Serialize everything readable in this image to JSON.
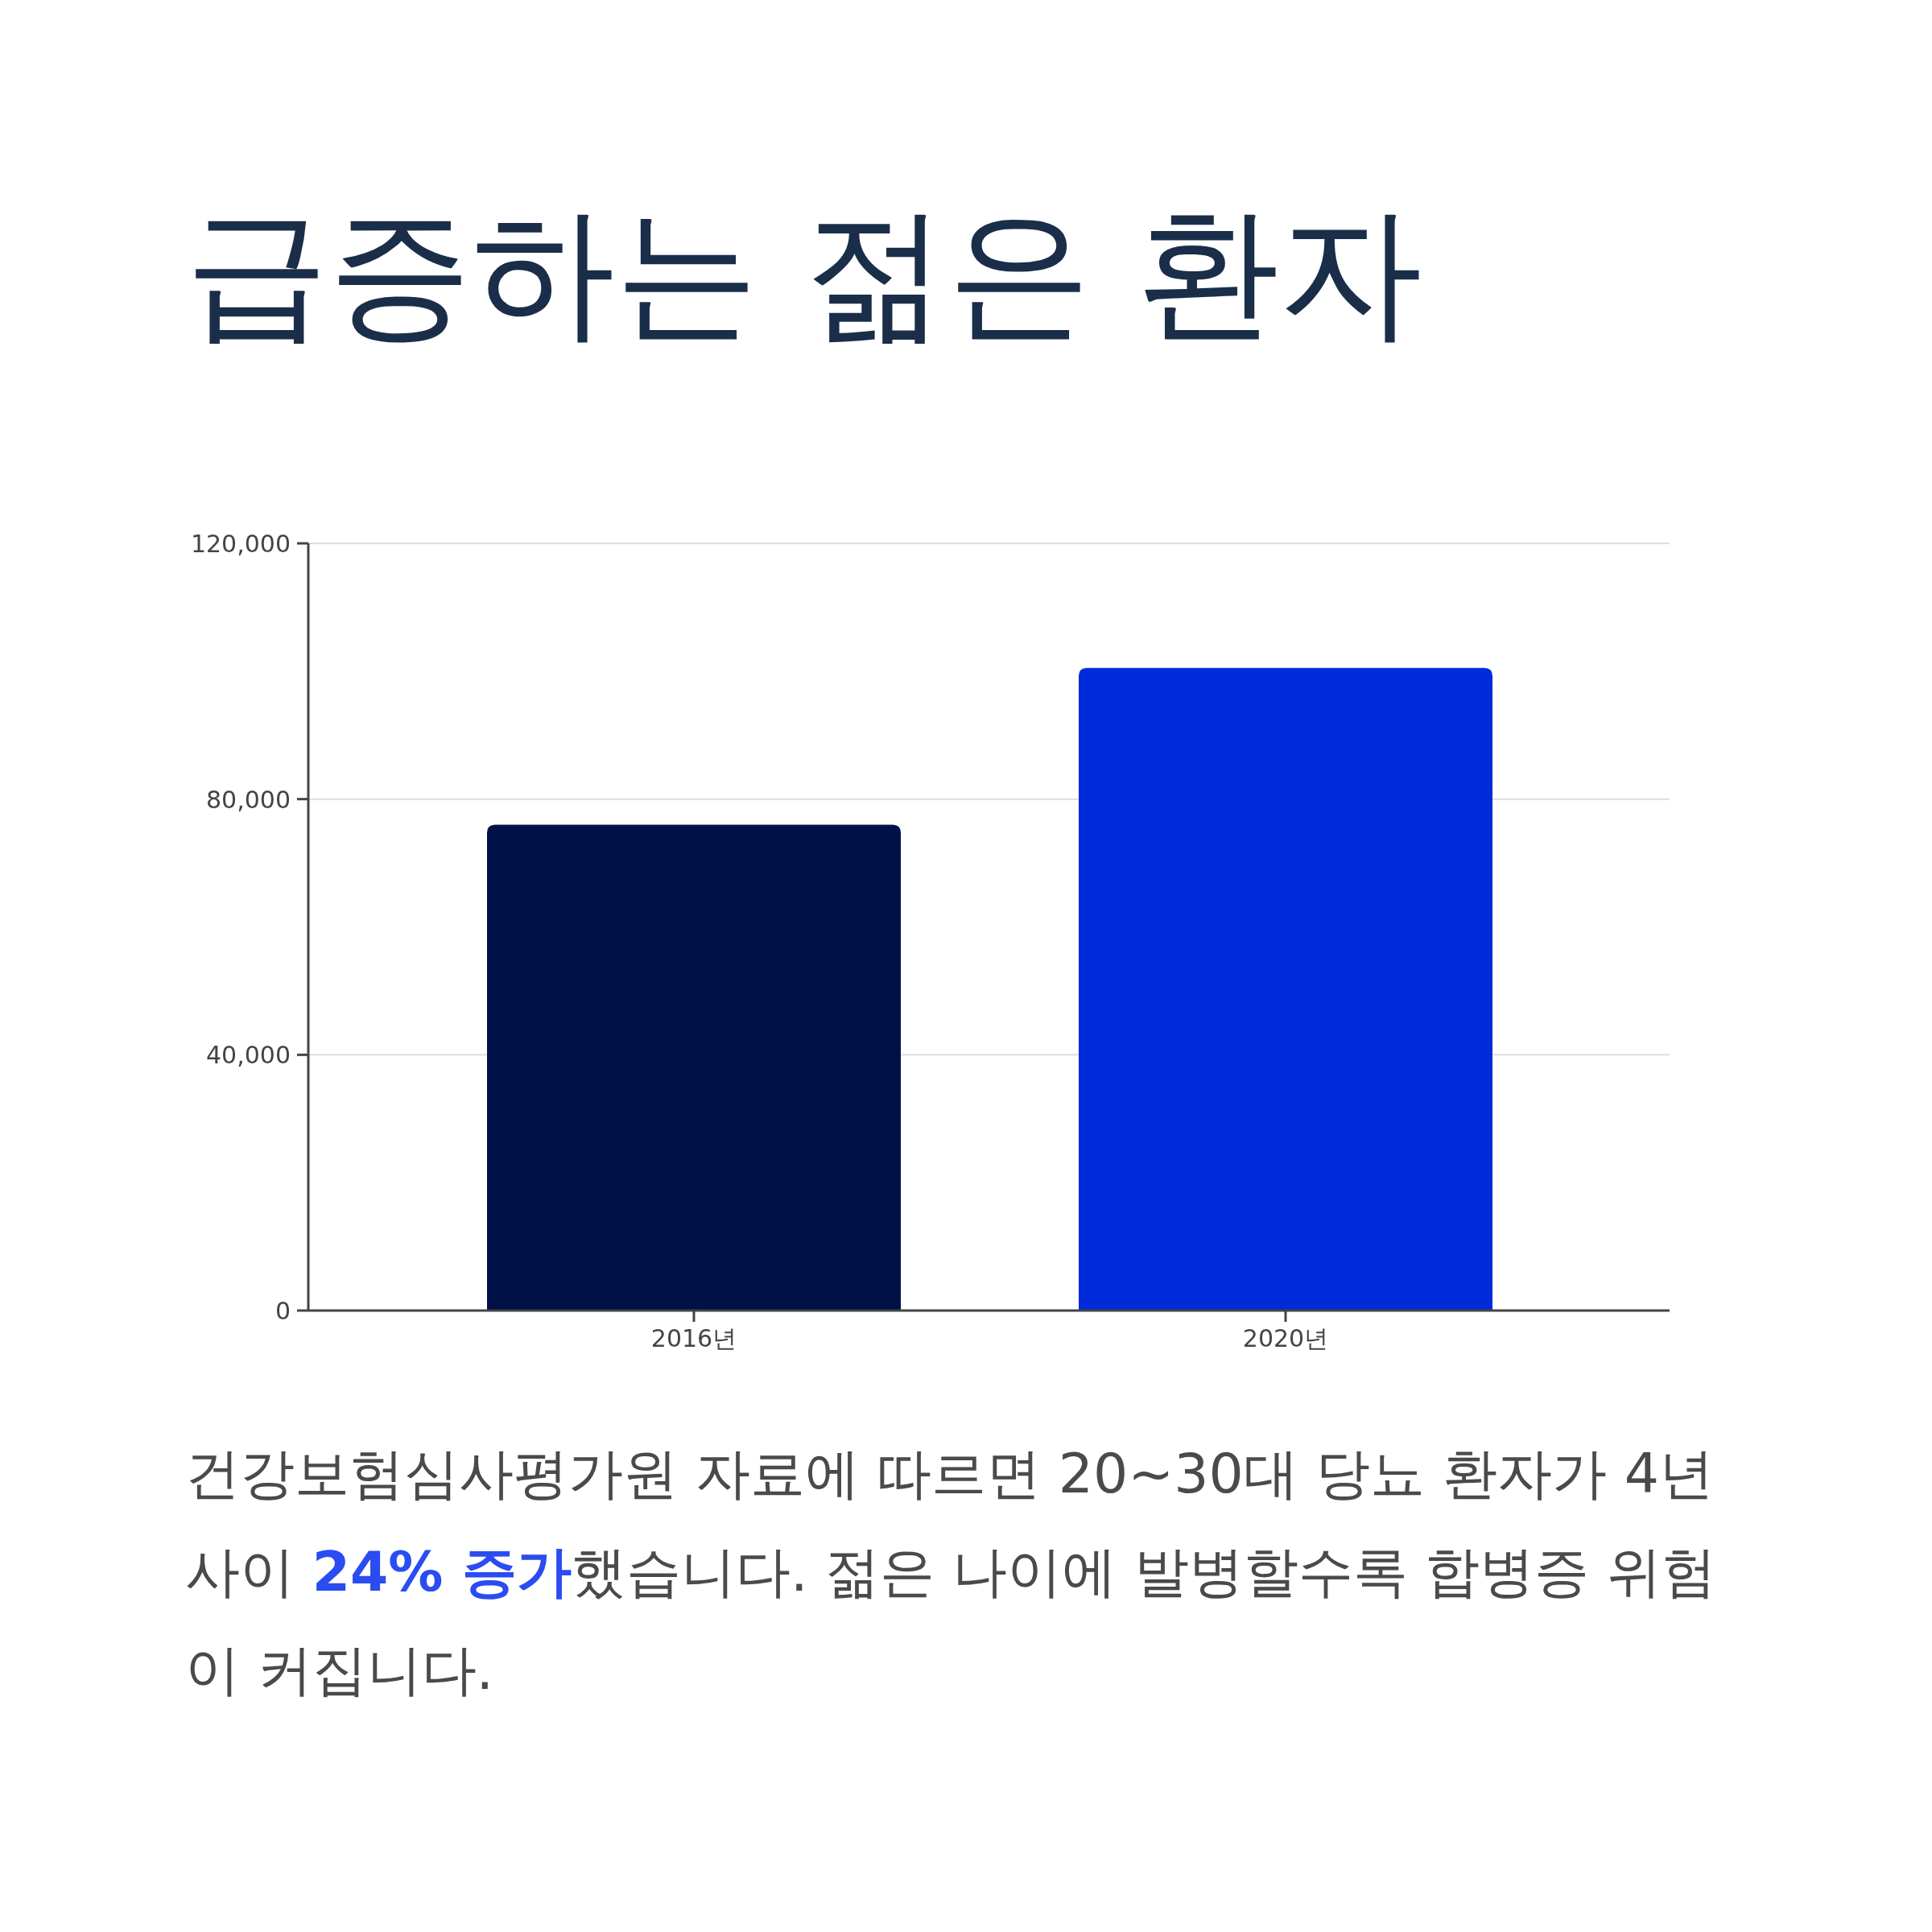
{
  "chart_data": {
    "type": "bar",
    "title": "급증하는 젊은 환자",
    "categories": [
      "2016년",
      "2020년"
    ],
    "values": [
      76000,
      100500
    ],
    "colors": [
      "#001147",
      "#002bdb"
    ],
    "ylim": [
      0,
      120000
    ],
    "yticks": [
      0,
      {
        "value": 40000,
        "label": "40,000"
      },
      {
        "value": 80000,
        "label": "80,000"
      },
      {
        "value": 120000,
        "label": "120,000"
      }
    ],
    "grid": "y",
    "annotations": [
      "건강보험심사평가원 자료에 따르면 20~30대 당뇨 환자가 4년 사이 **24% 증가**했습니다. 젊은 나이에 발병할수록 합병증 위험이 커집니다."
    ]
  }
}
